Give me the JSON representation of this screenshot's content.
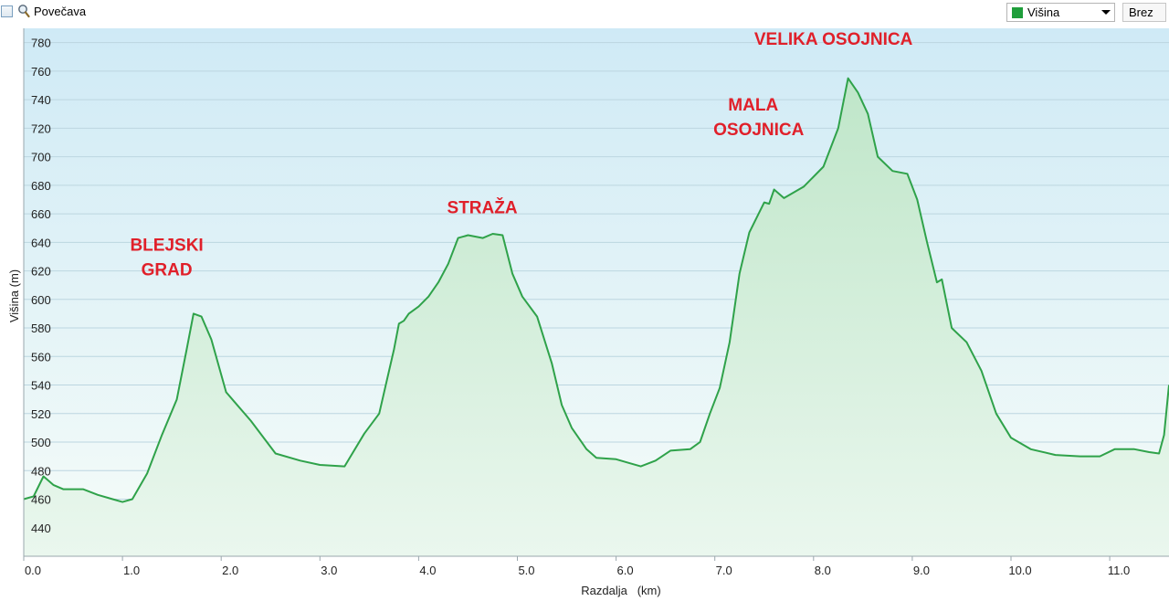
{
  "toolbar": {
    "zoom_label": "Povečava",
    "series_select": {
      "label": "Višina",
      "color": "#1f9e3b"
    },
    "reset_button": "Brez"
  },
  "colors": {
    "line": "#2fa24a",
    "area_top": "#bfe6c9",
    "area_bottom": "#eaf7ee",
    "plot_top": "#cfeaf6",
    "plot_bottom": "#f6fcf8",
    "grid": "#bcd6e0",
    "annotation": "#e0202a"
  },
  "chart_data": {
    "type": "area",
    "xlabel": "Razdalja   (km)",
    "ylabel": "Višina (m)",
    "xlim": [
      0,
      11.6
    ],
    "ylim": [
      420,
      790
    ],
    "x_ticks": [
      "0.0",
      "1.0",
      "2.0",
      "3.0",
      "4.0",
      "5.0",
      "6.0",
      "7.0",
      "8.0",
      "9.0",
      "10.0",
      "11.0"
    ],
    "y_ticks": [
      "440",
      "460",
      "480",
      "500",
      "520",
      "540",
      "560",
      "580",
      "600",
      "620",
      "640",
      "660",
      "680",
      "700",
      "720",
      "740",
      "760",
      "780"
    ],
    "grid": true,
    "legend": "none",
    "annotations": [
      {
        "lines": [
          "BLEJSKI",
          "GRAD"
        ],
        "x": 1.8,
        "y": 590
      },
      {
        "lines": [
          "STRAŽA"
        ],
        "x": 4.7,
        "y": 645
      },
      {
        "lines": [
          "MALA",
          "OSOJNICA"
        ],
        "x": 7.5,
        "y": 680
      },
      {
        "lines": [
          "VELIKA OSOJNICA"
        ],
        "x": 8.35,
        "y": 756
      }
    ],
    "series": [
      {
        "x": [
          0,
          0.1,
          0.2,
          0.3,
          0.4,
          0.6,
          0.75,
          0.9,
          1.0,
          1.1,
          1.25,
          1.4,
          1.55,
          1.65,
          1.72,
          1.8,
          1.9,
          2.05,
          2.3,
          2.55,
          2.8,
          3.0,
          3.25,
          3.45,
          3.6,
          3.75,
          3.8,
          3.85,
          3.9,
          4.0,
          4.1,
          4.2,
          4.3,
          4.4,
          4.5,
          4.65,
          4.75,
          4.85,
          4.95,
          5.05,
          5.2,
          5.35,
          5.45,
          5.55,
          5.7,
          5.8,
          6.0,
          6.1,
          6.25,
          6.4,
          6.55,
          6.75,
          6.85,
          6.95,
          7.05,
          7.15,
          7.25,
          7.35,
          7.5,
          7.55,
          7.6,
          7.7,
          7.9,
          8.1,
          8.25,
          8.35,
          8.45,
          8.55,
          8.65,
          8.8,
          8.95,
          9.05,
          9.15,
          9.25,
          9.3,
          9.4,
          9.55,
          9.7,
          9.85,
          10.0,
          10.2,
          10.45,
          10.7,
          10.9,
          11.05,
          11.25,
          11.4,
          11.5,
          11.55,
          11.6
        ],
        "y": [
          460,
          462,
          476,
          470,
          467,
          467,
          463,
          460,
          458,
          460,
          478,
          505,
          530,
          565,
          590,
          588,
          572,
          535,
          515,
          492,
          487,
          484,
          483,
          506,
          520,
          565,
          583,
          585,
          590,
          595,
          602,
          612,
          625,
          643,
          645,
          643,
          646,
          645,
          618,
          602,
          588,
          555,
          526,
          510,
          495,
          489,
          488,
          486,
          483,
          487,
          494,
          495,
          500,
          520,
          538,
          570,
          618,
          647,
          668,
          667,
          677,
          671,
          679,
          693,
          720,
          755,
          745,
          730,
          700,
          690,
          688,
          670,
          640,
          612,
          614,
          580,
          570,
          550,
          520,
          503,
          495,
          491,
          490,
          490,
          495,
          495,
          493,
          492,
          505,
          540
        ]
      }
    ]
  }
}
